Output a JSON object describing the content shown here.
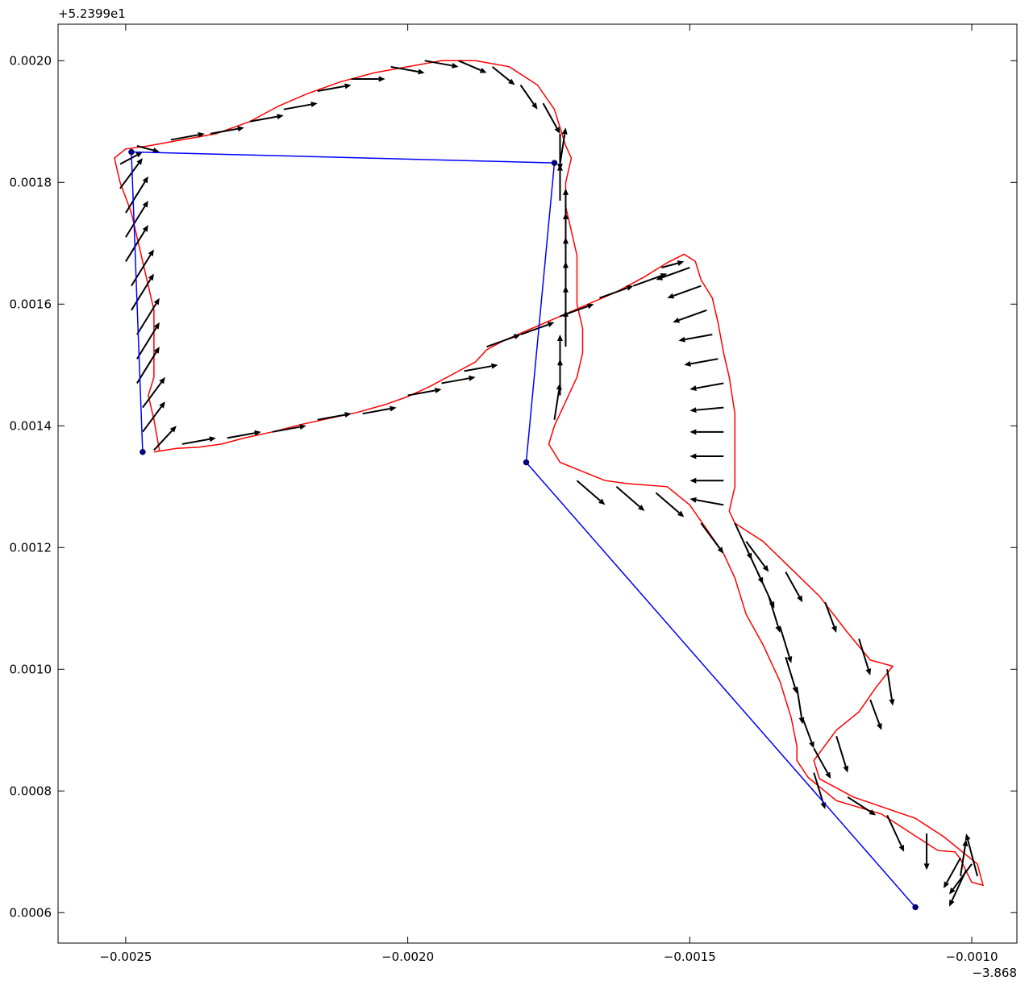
{
  "chart_data": {
    "type": "line",
    "title": "",
    "xlabel": "",
    "ylabel": "",
    "x_offset_text": "−3.868",
    "y_offset_text": "+5.2399e1",
    "xlim": [
      -0.00262,
      -0.00092
    ],
    "ylim": [
      0.00055,
      0.00206
    ],
    "x_ticks": [
      {
        "value": -0.0025,
        "label": "−0.0025"
      },
      {
        "value": -0.002,
        "label": "−0.0020"
      },
      {
        "value": -0.0015,
        "label": "−0.0015"
      },
      {
        "value": -0.001,
        "label": "−0.0010"
      }
    ],
    "y_ticks": [
      {
        "value": 0.0006,
        "label": "0.0006"
      },
      {
        "value": 0.0008,
        "label": "0.0008"
      },
      {
        "value": 0.001,
        "label": "0.0010"
      },
      {
        "value": 0.0012,
        "label": "0.0012"
      },
      {
        "value": 0.0014,
        "label": "0.0014"
      },
      {
        "value": 0.0016,
        "label": "0.0016"
      },
      {
        "value": 0.0018,
        "label": "0.0018"
      },
      {
        "value": 0.002,
        "label": "0.0020"
      }
    ],
    "grid": false,
    "legend": "none",
    "colors": {
      "track": "#ff0000",
      "route": "#0000ff",
      "route_marker": "#00008b",
      "arrows": "#000000"
    },
    "series": [
      {
        "kind": "track",
        "points": [
          [
            -0.00245,
            0.001357
          ],
          [
            -0.00241,
            0.001363
          ],
          [
            -0.00237,
            0.001365
          ],
          [
            -0.00233,
            0.00137
          ],
          [
            -0.00229,
            0.00138
          ],
          [
            -0.00224,
            0.00139
          ],
          [
            -0.00219,
            0.001402
          ],
          [
            -0.00214,
            0.001412
          ],
          [
            -0.00209,
            0.001422
          ],
          [
            -0.00204,
            0.001435
          ],
          [
            -0.002,
            0.001448
          ],
          [
            -0.00196,
            0.001465
          ],
          [
            -0.00192,
            0.001485
          ],
          [
            -0.00188,
            0.001505
          ],
          [
            -0.00186,
            0.001525
          ],
          [
            -0.00183,
            0.00154
          ],
          [
            -0.00178,
            0.00156
          ],
          [
            -0.00173,
            0.00158
          ],
          [
            -0.00168,
            0.0016
          ],
          [
            -0.00163,
            0.00162
          ],
          [
            -0.00158,
            0.001645
          ],
          [
            -0.00154,
            0.001668
          ],
          [
            -0.00151,
            0.001682
          ],
          [
            -0.00149,
            0.00167
          ],
          [
            -0.00148,
            0.00164
          ],
          [
            -0.00146,
            0.00161
          ],
          [
            -0.00145,
            0.00157
          ],
          [
            -0.00144,
            0.00152
          ],
          [
            -0.00143,
            0.00148
          ],
          [
            -0.00142,
            0.00142
          ],
          [
            -0.00142,
            0.00138
          ],
          [
            -0.00142,
            0.00134
          ],
          [
            -0.00142,
            0.0013
          ],
          [
            -0.00143,
            0.00126
          ],
          [
            -0.00142,
            0.00124
          ],
          [
            -0.00137,
            0.00121
          ],
          [
            -0.00132,
            0.001165
          ],
          [
            -0.00127,
            0.00112
          ],
          [
            -0.00122,
            0.00106
          ],
          [
            -0.00118,
            0.001015
          ],
          [
            -0.00114,
            0.001005
          ],
          [
            -0.00117,
            0.00097
          ],
          [
            -0.0012,
            0.00093
          ],
          [
            -0.00124,
            0.0009
          ],
          [
            -0.00128,
            0.00085
          ],
          [
            -0.00127,
            0.00082
          ],
          [
            -0.00121,
            0.00079
          ],
          [
            -0.0011,
            0.000755
          ],
          [
            -0.00105,
            0.000725
          ],
          [
            -0.00099,
            0.00068
          ],
          [
            -0.00098,
            0.000645
          ],
          [
            -0.001,
            0.00065
          ],
          [
            -0.00101,
            0.000668
          ],
          [
            -0.00102,
            0.000688
          ],
          [
            -0.00103,
            0.0007
          ],
          [
            -0.00106,
            0.000702
          ],
          [
            -0.00116,
            0.000762
          ],
          [
            -0.00124,
            0.000784
          ],
          [
            -0.00129,
            0.000822
          ],
          [
            -0.00131,
            0.00085
          ],
          [
            -0.00131,
            0.000873
          ],
          [
            -0.00132,
            0.00092
          ],
          [
            -0.00134,
            0.00098
          ],
          [
            -0.00137,
            0.00104
          ],
          [
            -0.0014,
            0.00109
          ],
          [
            -0.00142,
            0.00115
          ],
          [
            -0.00144,
            0.00119
          ],
          [
            -0.00147,
            0.00123
          ],
          [
            -0.0015,
            0.00127
          ],
          [
            -0.00154,
            0.0013
          ],
          [
            -0.00161,
            0.001305
          ],
          [
            -0.00165,
            0.00131
          ],
          [
            -0.00169,
            0.001325
          ],
          [
            -0.00173,
            0.00134
          ],
          [
            -0.00175,
            0.00137
          ],
          [
            -0.00174,
            0.0014
          ],
          [
            -0.00172,
            0.00144
          ],
          [
            -0.0017,
            0.00148
          ],
          [
            -0.00169,
            0.00152
          ],
          [
            -0.00169,
            0.00156
          ],
          [
            -0.0017,
            0.0016
          ],
          [
            -0.0017,
            0.00164
          ],
          [
            -0.0017,
            0.00168
          ],
          [
            -0.00171,
            0.00172
          ],
          [
            -0.00172,
            0.00176
          ],
          [
            -0.00172,
            0.0018
          ],
          [
            -0.00171,
            0.00184
          ],
          [
            -0.00172,
            0.00186
          ],
          [
            -0.00173,
            0.00189
          ],
          [
            -0.00174,
            0.00192
          ],
          [
            -0.00177,
            0.00196
          ],
          [
            -0.00182,
            0.00199
          ],
          [
            -0.00188,
            0.002
          ],
          [
            -0.00194,
            0.002
          ],
          [
            -0.002,
            0.00199
          ],
          [
            -0.00206,
            0.00198
          ],
          [
            -0.00212,
            0.001965
          ],
          [
            -0.00218,
            0.001945
          ],
          [
            -0.00223,
            0.001925
          ],
          [
            -0.00228,
            0.0019
          ],
          [
            -0.00234,
            0.00188
          ],
          [
            -0.0024,
            0.00187
          ],
          [
            -0.00246,
            0.00186
          ],
          [
            -0.0025,
            0.001855
          ],
          [
            -0.00252,
            0.00184
          ],
          [
            -0.00251,
            0.0018
          ],
          [
            -0.00249,
            0.00175
          ],
          [
            -0.00248,
            0.00171
          ],
          [
            -0.00247,
            0.00167
          ],
          [
            -0.00246,
            0.00163
          ],
          [
            -0.00245,
            0.00159
          ],
          [
            -0.00245,
            0.00155
          ],
          [
            -0.00245,
            0.00151
          ],
          [
            -0.00245,
            0.00148
          ],
          [
            -0.00246,
            0.00145
          ],
          [
            -0.00245,
            0.00141
          ],
          [
            -0.00244,
            0.001358
          ]
        ]
      },
      {
        "kind": "route",
        "points": [
          [
            -0.00247,
            0.001357
          ],
          [
            -0.00249,
            0.00185
          ],
          [
            -0.00174,
            0.001832
          ],
          [
            -0.00179,
            0.00134
          ],
          [
            -0.0011,
            0.000609
          ]
        ]
      }
    ],
    "quiver": {
      "description": "heading arrows along the track",
      "arrows": [
        [
          -0.00245,
          0.00136,
          4e-05,
          4e-05
        ],
        [
          -0.00247,
          0.00139,
          4e-05,
          5e-05
        ],
        [
          -0.00247,
          0.00143,
          4e-05,
          5e-05
        ],
        [
          -0.00248,
          0.00147,
          4e-05,
          6e-05
        ],
        [
          -0.00248,
          0.00151,
          4e-05,
          6e-05
        ],
        [
          -0.00248,
          0.00155,
          4e-05,
          6e-05
        ],
        [
          -0.00249,
          0.00159,
          4e-05,
          6e-05
        ],
        [
          -0.00249,
          0.00163,
          4e-05,
          6e-05
        ],
        [
          -0.0025,
          0.00167,
          4e-05,
          6e-05
        ],
        [
          -0.0025,
          0.00171,
          4e-05,
          6e-05
        ],
        [
          -0.0025,
          0.00175,
          4e-05,
          6e-05
        ],
        [
          -0.00251,
          0.00179,
          4e-05,
          5e-05
        ],
        [
          -0.00251,
          0.00183,
          4e-05,
          2e-05
        ],
        [
          -0.0024,
          0.00137,
          6e-05,
          1e-05
        ],
        [
          -0.00232,
          0.00138,
          6e-05,
          1e-05
        ],
        [
          -0.00224,
          0.00139,
          6e-05,
          1e-05
        ],
        [
          -0.00216,
          0.00141,
          6e-05,
          1e-05
        ],
        [
          -0.00208,
          0.00142,
          6e-05,
          1e-05
        ],
        [
          -0.002,
          0.00145,
          6e-05,
          1e-05
        ],
        [
          -0.00194,
          0.00147,
          6e-05,
          1e-05
        ],
        [
          -0.0019,
          0.00149,
          6e-05,
          1e-05
        ],
        [
          -0.00186,
          0.00153,
          6e-05,
          2e-05
        ],
        [
          -0.0018,
          0.00155,
          6e-05,
          2e-05
        ],
        [
          -0.00173,
          0.00158,
          6e-05,
          2e-05
        ],
        [
          -0.00166,
          0.00161,
          6e-05,
          2e-05
        ],
        [
          -0.0016,
          0.00163,
          6e-05,
          2e-05
        ],
        [
          -0.00155,
          0.00166,
          4e-05,
          1e-05
        ],
        [
          -0.0015,
          0.00166,
          -6e-05,
          -2e-05
        ],
        [
          -0.00148,
          0.00163,
          -6e-05,
          -2e-05
        ],
        [
          -0.00147,
          0.00159,
          -6e-05,
          -2e-05
        ],
        [
          -0.00146,
          0.00155,
          -6e-05,
          -1e-05
        ],
        [
          -0.00145,
          0.00151,
          -6e-05,
          -1e-05
        ],
        [
          -0.00144,
          0.00147,
          -6e-05,
          -1e-05
        ],
        [
          -0.00144,
          0.00143,
          -6e-05,
          -5e-06
        ],
        [
          -0.00144,
          0.00139,
          -6e-05,
          0
        ],
        [
          -0.00144,
          0.00135,
          -6e-05,
          0
        ],
        [
          -0.00144,
          0.00131,
          -6e-05,
          0
        ],
        [
          -0.00144,
          0.00127,
          -6e-05,
          1e-05
        ],
        [
          -0.0017,
          0.00131,
          5e-05,
          -4e-05
        ],
        [
          -0.00163,
          0.0013,
          5e-05,
          -4e-05
        ],
        [
          -0.00156,
          0.00129,
          5e-05,
          -4e-05
        ],
        [
          -0.00148,
          0.00124,
          4e-05,
          -5e-05
        ],
        [
          -0.0014,
          0.00121,
          4e-05,
          -5e-05
        ],
        [
          -0.00133,
          0.00116,
          3e-05,
          -5e-05
        ],
        [
          -0.00126,
          0.00111,
          2e-05,
          -5e-05
        ],
        [
          -0.0012,
          0.00105,
          2e-05,
          -6e-05
        ],
        [
          -0.00115,
          0.001,
          1e-05,
          -6e-05
        ],
        [
          -0.00118,
          0.00095,
          2e-05,
          -5e-05
        ],
        [
          -0.00124,
          0.00089,
          2e-05,
          -6e-05
        ],
        [
          -0.00128,
          0.00083,
          2e-05,
          -6e-05
        ],
        [
          -0.00122,
          0.00079,
          5e-05,
          -3e-05
        ],
        [
          -0.00115,
          0.00076,
          3e-05,
          -6e-05
        ],
        [
          -0.00108,
          0.00073,
          0,
          -6e-05
        ],
        [
          -0.00102,
          0.00069,
          -3e-05,
          -5e-05
        ],
        [
          -0.00099,
          0.00066,
          -2e-05,
          7e-05
        ],
        [
          -0.00101,
          0.00067,
          -3e-05,
          -6e-05
        ],
        [
          -0.00102,
          0.00066,
          1e-05,
          6e-05
        ],
        [
          -0.001,
          0.00068,
          -4e-05,
          -5e-05
        ],
        [
          -0.00142,
          0.00124,
          3e-05,
          -6e-05
        ],
        [
          -0.0014,
          0.0012,
          3e-05,
          -6e-05
        ],
        [
          -0.00138,
          0.00116,
          3e-05,
          -6e-05
        ],
        [
          -0.00136,
          0.00112,
          2e-05,
          -6e-05
        ],
        [
          -0.00134,
          0.00107,
          2e-05,
          -6e-05
        ],
        [
          -0.00133,
          0.00102,
          2e-05,
          -6e-05
        ],
        [
          -0.00131,
          0.00097,
          1e-05,
          -6e-05
        ],
        [
          -0.0013,
          0.00092,
          2e-05,
          -5e-05
        ],
        [
          -0.00128,
          0.00087,
          3e-05,
          -5e-05
        ],
        [
          -0.00173,
          0.00177,
          0,
          6e-05
        ],
        [
          -0.00172,
          0.00173,
          0,
          6e-05
        ],
        [
          -0.00172,
          0.00169,
          0,
          6e-05
        ],
        [
          -0.00172,
          0.00165,
          0,
          6e-05
        ],
        [
          -0.00172,
          0.00161,
          0,
          6e-05
        ],
        [
          -0.00172,
          0.00157,
          0,
          6e-05
        ],
        [
          -0.00172,
          0.00153,
          0,
          6e-05
        ],
        [
          -0.00173,
          0.00149,
          0,
          6e-05
        ],
        [
          -0.00173,
          0.00145,
          0,
          6e-05
        ],
        [
          -0.00174,
          0.00141,
          1e-05,
          6e-05
        ],
        [
          -0.00173,
          0.00183,
          1e-05,
          6e-05
        ],
        [
          -0.00173,
          0.00188,
          0,
          -6e-05
        ],
        [
          -0.00176,
          0.00193,
          3e-05,
          -5e-05
        ],
        [
          -0.0018,
          0.00196,
          3e-05,
          -4e-05
        ],
        [
          -0.00185,
          0.00199,
          4e-05,
          -3e-05
        ],
        [
          -0.00191,
          0.002,
          5e-05,
          -2e-05
        ],
        [
          -0.00197,
          0.002,
          6e-05,
          -1e-05
        ],
        [
          -0.00203,
          0.00199,
          6e-05,
          -1e-05
        ],
        [
          -0.0021,
          0.00197,
          6e-05,
          0
        ],
        [
          -0.00216,
          0.00195,
          6e-05,
          1e-05
        ],
        [
          -0.00222,
          0.00192,
          6e-05,
          1e-05
        ],
        [
          -0.00228,
          0.0019,
          6e-05,
          1e-05
        ],
        [
          -0.00235,
          0.00188,
          6e-05,
          1e-05
        ],
        [
          -0.00242,
          0.00187,
          6e-05,
          1e-05
        ],
        [
          -0.00248,
          0.00186,
          4e-05,
          -1e-05
        ]
      ]
    },
    "route_markers": [
      [
        -0.00247,
        0.001357
      ],
      [
        -0.00249,
        0.00185
      ],
      [
        -0.00174,
        0.001832
      ],
      [
        -0.00179,
        0.00134
      ],
      [
        -0.0011,
        0.000609
      ]
    ]
  }
}
